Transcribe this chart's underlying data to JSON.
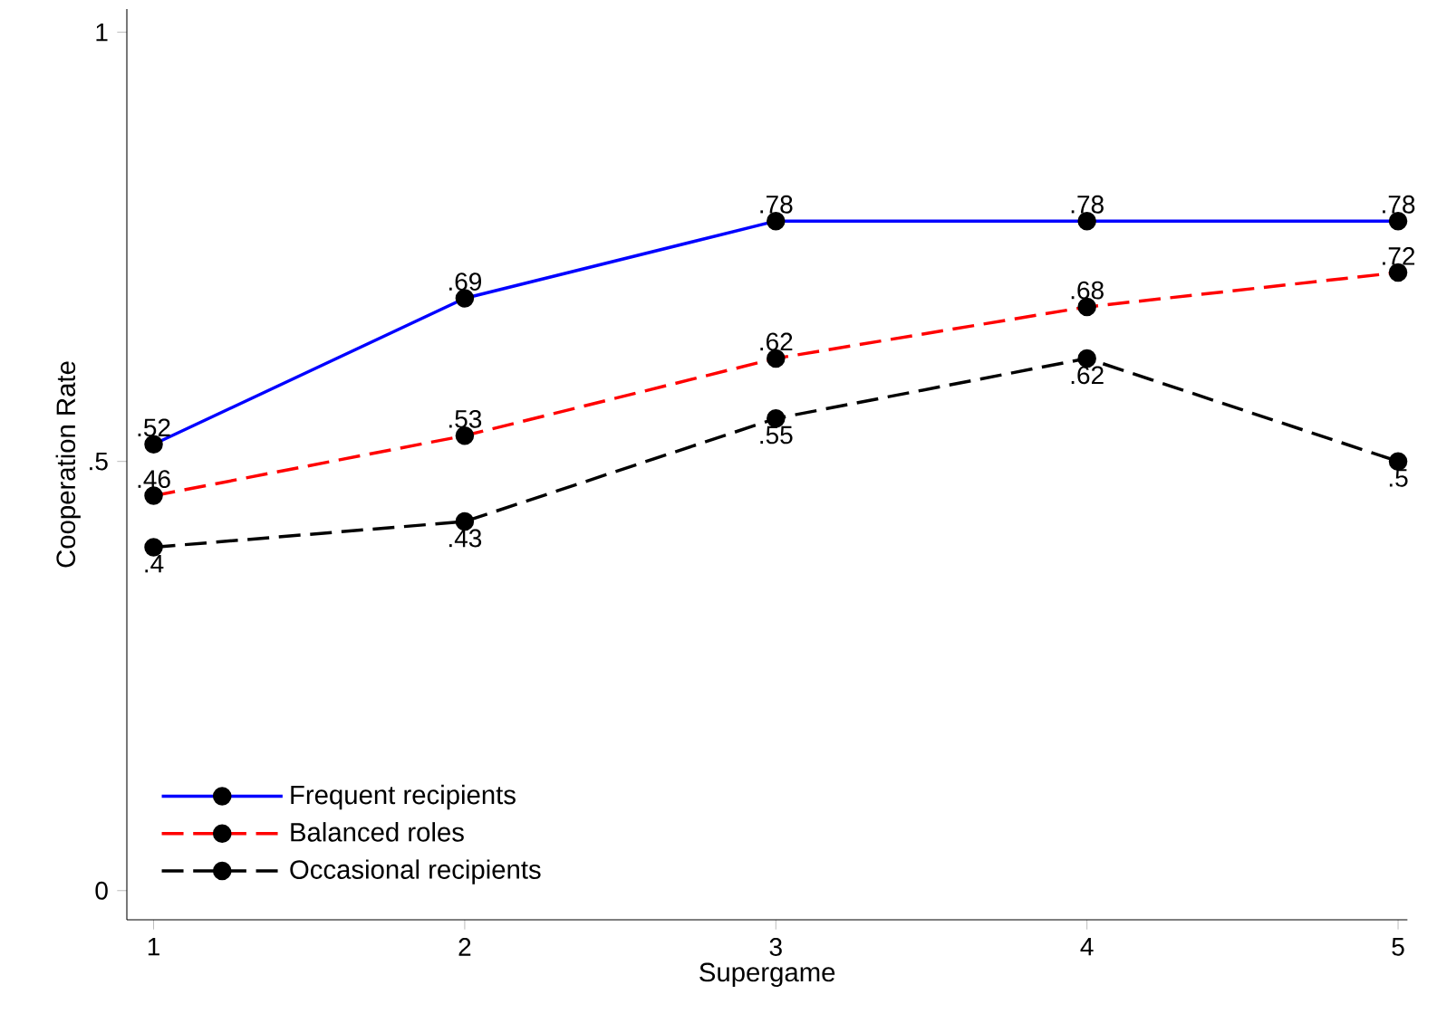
{
  "chart_data": {
    "type": "line",
    "xlabel": "Supergame",
    "ylabel": "Cooperation Rate",
    "x": [
      1,
      2,
      3,
      4,
      5
    ],
    "xlim": [
      0.914,
      5.03
    ],
    "ylim": [
      -0.034,
      1.027
    ],
    "xticks": [
      1,
      2,
      3,
      4,
      5
    ],
    "yticks": [
      0,
      {
        "value": 0.5,
        "label": ".5"
      },
      1
    ],
    "grid": false,
    "legend": "bottom left",
    "marker": "circle",
    "series": [
      {
        "name": "Frequent recipients",
        "color": "#0000ff",
        "line_style": "solid",
        "values": [
          0.52,
          0.69,
          0.78,
          0.78,
          0.78
        ],
        "value_labels": [
          ".52",
          ".69",
          ".78",
          ".78",
          ".78"
        ]
      },
      {
        "name": "Balanced roles",
        "color": "#ff0000",
        "line_style": "dashed",
        "values": [
          0.46,
          0.53,
          0.62,
          0.68,
          0.72
        ],
        "value_labels": [
          ".46",
          ".53",
          ".62",
          ".68",
          ".72"
        ]
      },
      {
        "name": "Occasional recipients",
        "color": "#000000",
        "line_style": "dashed",
        "values": [
          0.4,
          0.43,
          0.55,
          0.62,
          0.5
        ],
        "value_labels": [
          ".4",
          ".43",
          ".55",
          ".62",
          ".5"
        ]
      }
    ]
  }
}
